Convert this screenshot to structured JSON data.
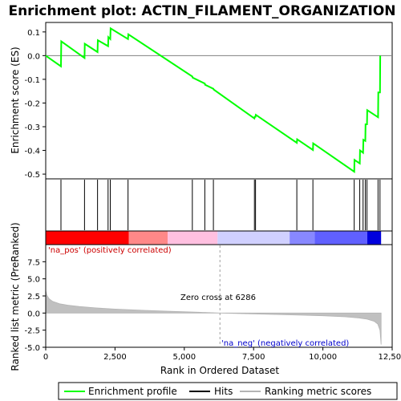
{
  "chart_data": {
    "type": "line",
    "title": "Enrichment plot: ACTIN_FILAMENT_ORGANIZATION",
    "xlabel": "Rank in Ordered Dataset",
    "xlim": [
      0,
      12500
    ],
    "x_ticks": [
      0,
      2500,
      5000,
      7500,
      10000,
      12500
    ],
    "x_tick_labels": [
      "0",
      "2,500",
      "5,000",
      "7,500",
      "10,000",
      "12,500"
    ],
    "es_panel": {
      "ylabel": "Enrichment score (ES)",
      "ylim": [
        -0.52,
        0.14
      ],
      "y_ticks": [
        0.1,
        0.0,
        -0.1,
        -0.2,
        -0.3,
        -0.4,
        -0.5
      ],
      "y_tick_labels": [
        "0.1",
        "0.0",
        "-0.1",
        "-0.2",
        "-0.3",
        "-0.4",
        "-0.5"
      ],
      "zero_line": 0.0,
      "series": [
        {
          "name": "Enrichment profile",
          "color": "#00ff00",
          "x": [
            0,
            550,
            560,
            1400,
            1410,
            1870,
            1880,
            2250,
            2260,
            2330,
            2340,
            2970,
            2980,
            5290,
            5300,
            5740,
            5750,
            6050,
            6060,
            7530,
            7540,
            7570,
            7580,
            9060,
            9070,
            9640,
            9650,
            11130,
            11140,
            11330,
            11340,
            11450,
            11460,
            11530,
            11540,
            11590,
            11600,
            11990,
            12000,
            12060,
            12070
          ],
          "y": [
            0.0,
            -0.045,
            0.06,
            -0.01,
            0.05,
            0.015,
            0.065,
            0.04,
            0.078,
            0.07,
            0.115,
            0.07,
            0.09,
            -0.088,
            -0.093,
            -0.118,
            -0.123,
            -0.14,
            -0.143,
            -0.265,
            -0.258,
            -0.258,
            -0.25,
            -0.368,
            -0.353,
            -0.398,
            -0.37,
            -0.49,
            -0.44,
            -0.455,
            -0.4,
            -0.41,
            -0.355,
            -0.36,
            -0.29,
            -0.29,
            -0.23,
            -0.26,
            -0.155,
            -0.155,
            0.0
          ]
        }
      ]
    },
    "hits": {
      "name": "Hits",
      "color": "#000000",
      "positions": [
        550,
        1400,
        1870,
        2250,
        2330,
        2970,
        5290,
        5740,
        6050,
        7530,
        7570,
        9060,
        9640,
        11130,
        11330,
        11450,
        11530,
        11590,
        11990,
        12060
      ]
    },
    "ranking_bar": {
      "segments": [
        {
          "from": 0,
          "to": 3000,
          "color": "#ff0000"
        },
        {
          "from": 3000,
          "to": 4400,
          "color": "#ff8888"
        },
        {
          "from": 4400,
          "to": 6200,
          "color": "#ffc0e0"
        },
        {
          "from": 6200,
          "to": 8800,
          "color": "#d0d0ff"
        },
        {
          "from": 8800,
          "to": 9700,
          "color": "#8888ff"
        },
        {
          "from": 9700,
          "to": 11600,
          "color": "#6060ff"
        },
        {
          "from": 11600,
          "to": 12100,
          "color": "#0000dd"
        }
      ]
    },
    "metric_panel": {
      "ylabel": "Ranked list metric (PreRanked)",
      "ylim": [
        -5,
        10
      ],
      "y_ticks": [
        7.5,
        5.0,
        2.5,
        0.0,
        -2.5,
        -5.0
      ],
      "y_tick_labels": [
        "7.5",
        "5.0",
        "2.5",
        "0.0",
        "-2.5",
        "-5.0"
      ],
      "series": [
        {
          "name": "Ranking metric scores",
          "color": "#b4b4b4",
          "x": [
            0,
            40,
            120,
            250,
            500,
            800,
            1200,
            1800,
            2500,
            3500,
            4500,
            5500,
            6286,
            7000,
            8000,
            9000,
            10000,
            10800,
            11300,
            11600,
            11850,
            11980,
            12060,
            12100
          ],
          "y": [
            3.3,
            2.6,
            2.1,
            1.7,
            1.35,
            1.15,
            0.95,
            0.75,
            0.58,
            0.4,
            0.25,
            0.12,
            0.0,
            -0.08,
            -0.18,
            -0.28,
            -0.4,
            -0.55,
            -0.72,
            -0.9,
            -1.2,
            -1.6,
            -2.5,
            -4.6
          ]
        }
      ],
      "zero_cross_label": "Zero cross at 6286",
      "zero_cross_x": 6286,
      "pos_label": "'na_pos' (positively correlated)",
      "neg_label": "'na_neg' (negatively correlated)"
    },
    "legend": {
      "placement": "bottom",
      "entries": [
        {
          "label": "Enrichment profile",
          "color": "#00ff00"
        },
        {
          "label": "Hits",
          "color": "#000000"
        },
        {
          "label": "Ranking metric scores",
          "color": "#b4b4b4"
        }
      ]
    }
  }
}
